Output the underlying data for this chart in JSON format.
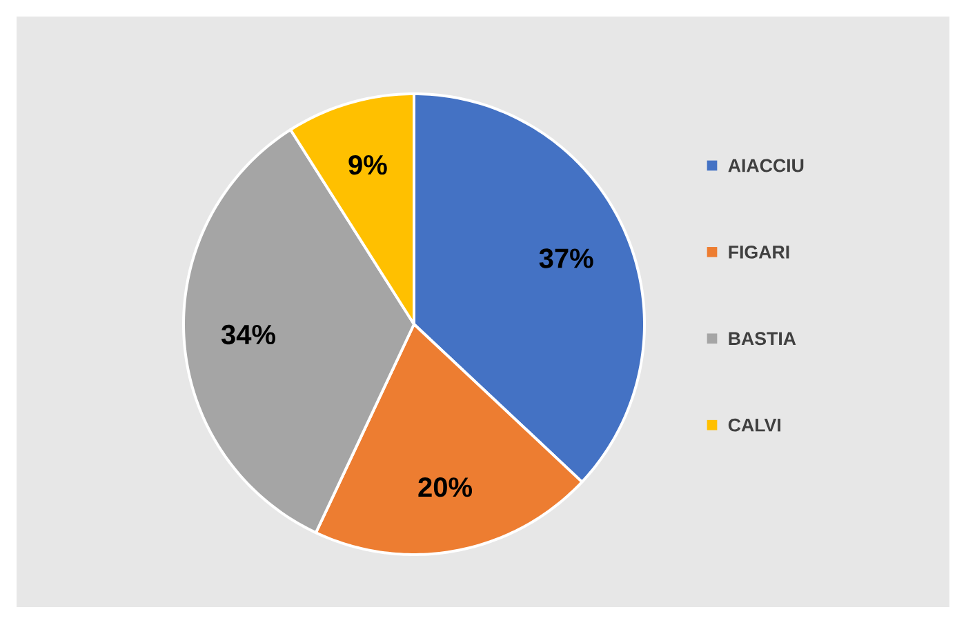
{
  "chart_data": {
    "type": "pie",
    "categories": [
      "AIACCIU",
      "FIGARI",
      "BASTIA",
      "CALVI"
    ],
    "values": [
      37,
      20,
      34,
      9
    ],
    "colors": [
      "#4472c4",
      "#ed7d31",
      "#a5a5a5",
      "#ffc000"
    ],
    "value_labels": [
      "37%",
      "20%",
      "34%",
      "9%"
    ],
    "legend": "right"
  }
}
